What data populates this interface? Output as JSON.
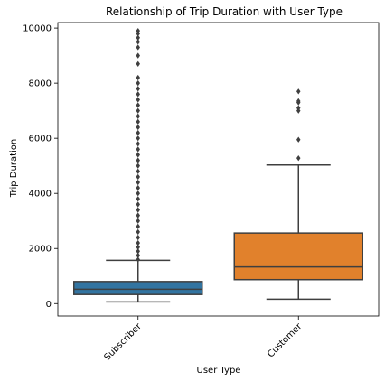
{
  "chart_data": {
    "type": "boxplot",
    "title": "Relationship of Trip Duration with User Type",
    "xlabel": "User Type",
    "ylabel": "Trip Duration",
    "ylim": [
      -450,
      10200
    ],
    "yticks": [
      "0",
      "2000",
      "4000",
      "6000",
      "8000",
      "10000"
    ],
    "grid": false,
    "legend": "none",
    "categories": [
      "Subscriber",
      "Customer"
    ],
    "series": [
      {
        "category": "Subscriber",
        "color": "#3274a1",
        "whisker_low": 60,
        "q1": 330,
        "median": 520,
        "q3": 800,
        "whisker_high": 1570,
        "outliers": [
          1600,
          1750,
          1900,
          2050,
          2200,
          2400,
          2600,
          2800,
          3000,
          3200,
          3400,
          3600,
          3800,
          4000,
          4200,
          4400,
          4600,
          4800,
          5000,
          5200,
          5400,
          5600,
          5800,
          6000,
          6200,
          6400,
          6600,
          6800,
          7000,
          7200,
          7400,
          7600,
          7800,
          8000,
          8200,
          8700,
          9000,
          9300,
          9500,
          9650,
          9800,
          9900
        ]
      },
      {
        "category": "Customer",
        "color": "#e1812c",
        "whisker_low": 160,
        "q1": 870,
        "median": 1330,
        "q3": 2560,
        "whisker_high": 5030,
        "outliers": [
          5280,
          5950,
          7000,
          7100,
          7300,
          7350,
          7700
        ]
      }
    ]
  }
}
